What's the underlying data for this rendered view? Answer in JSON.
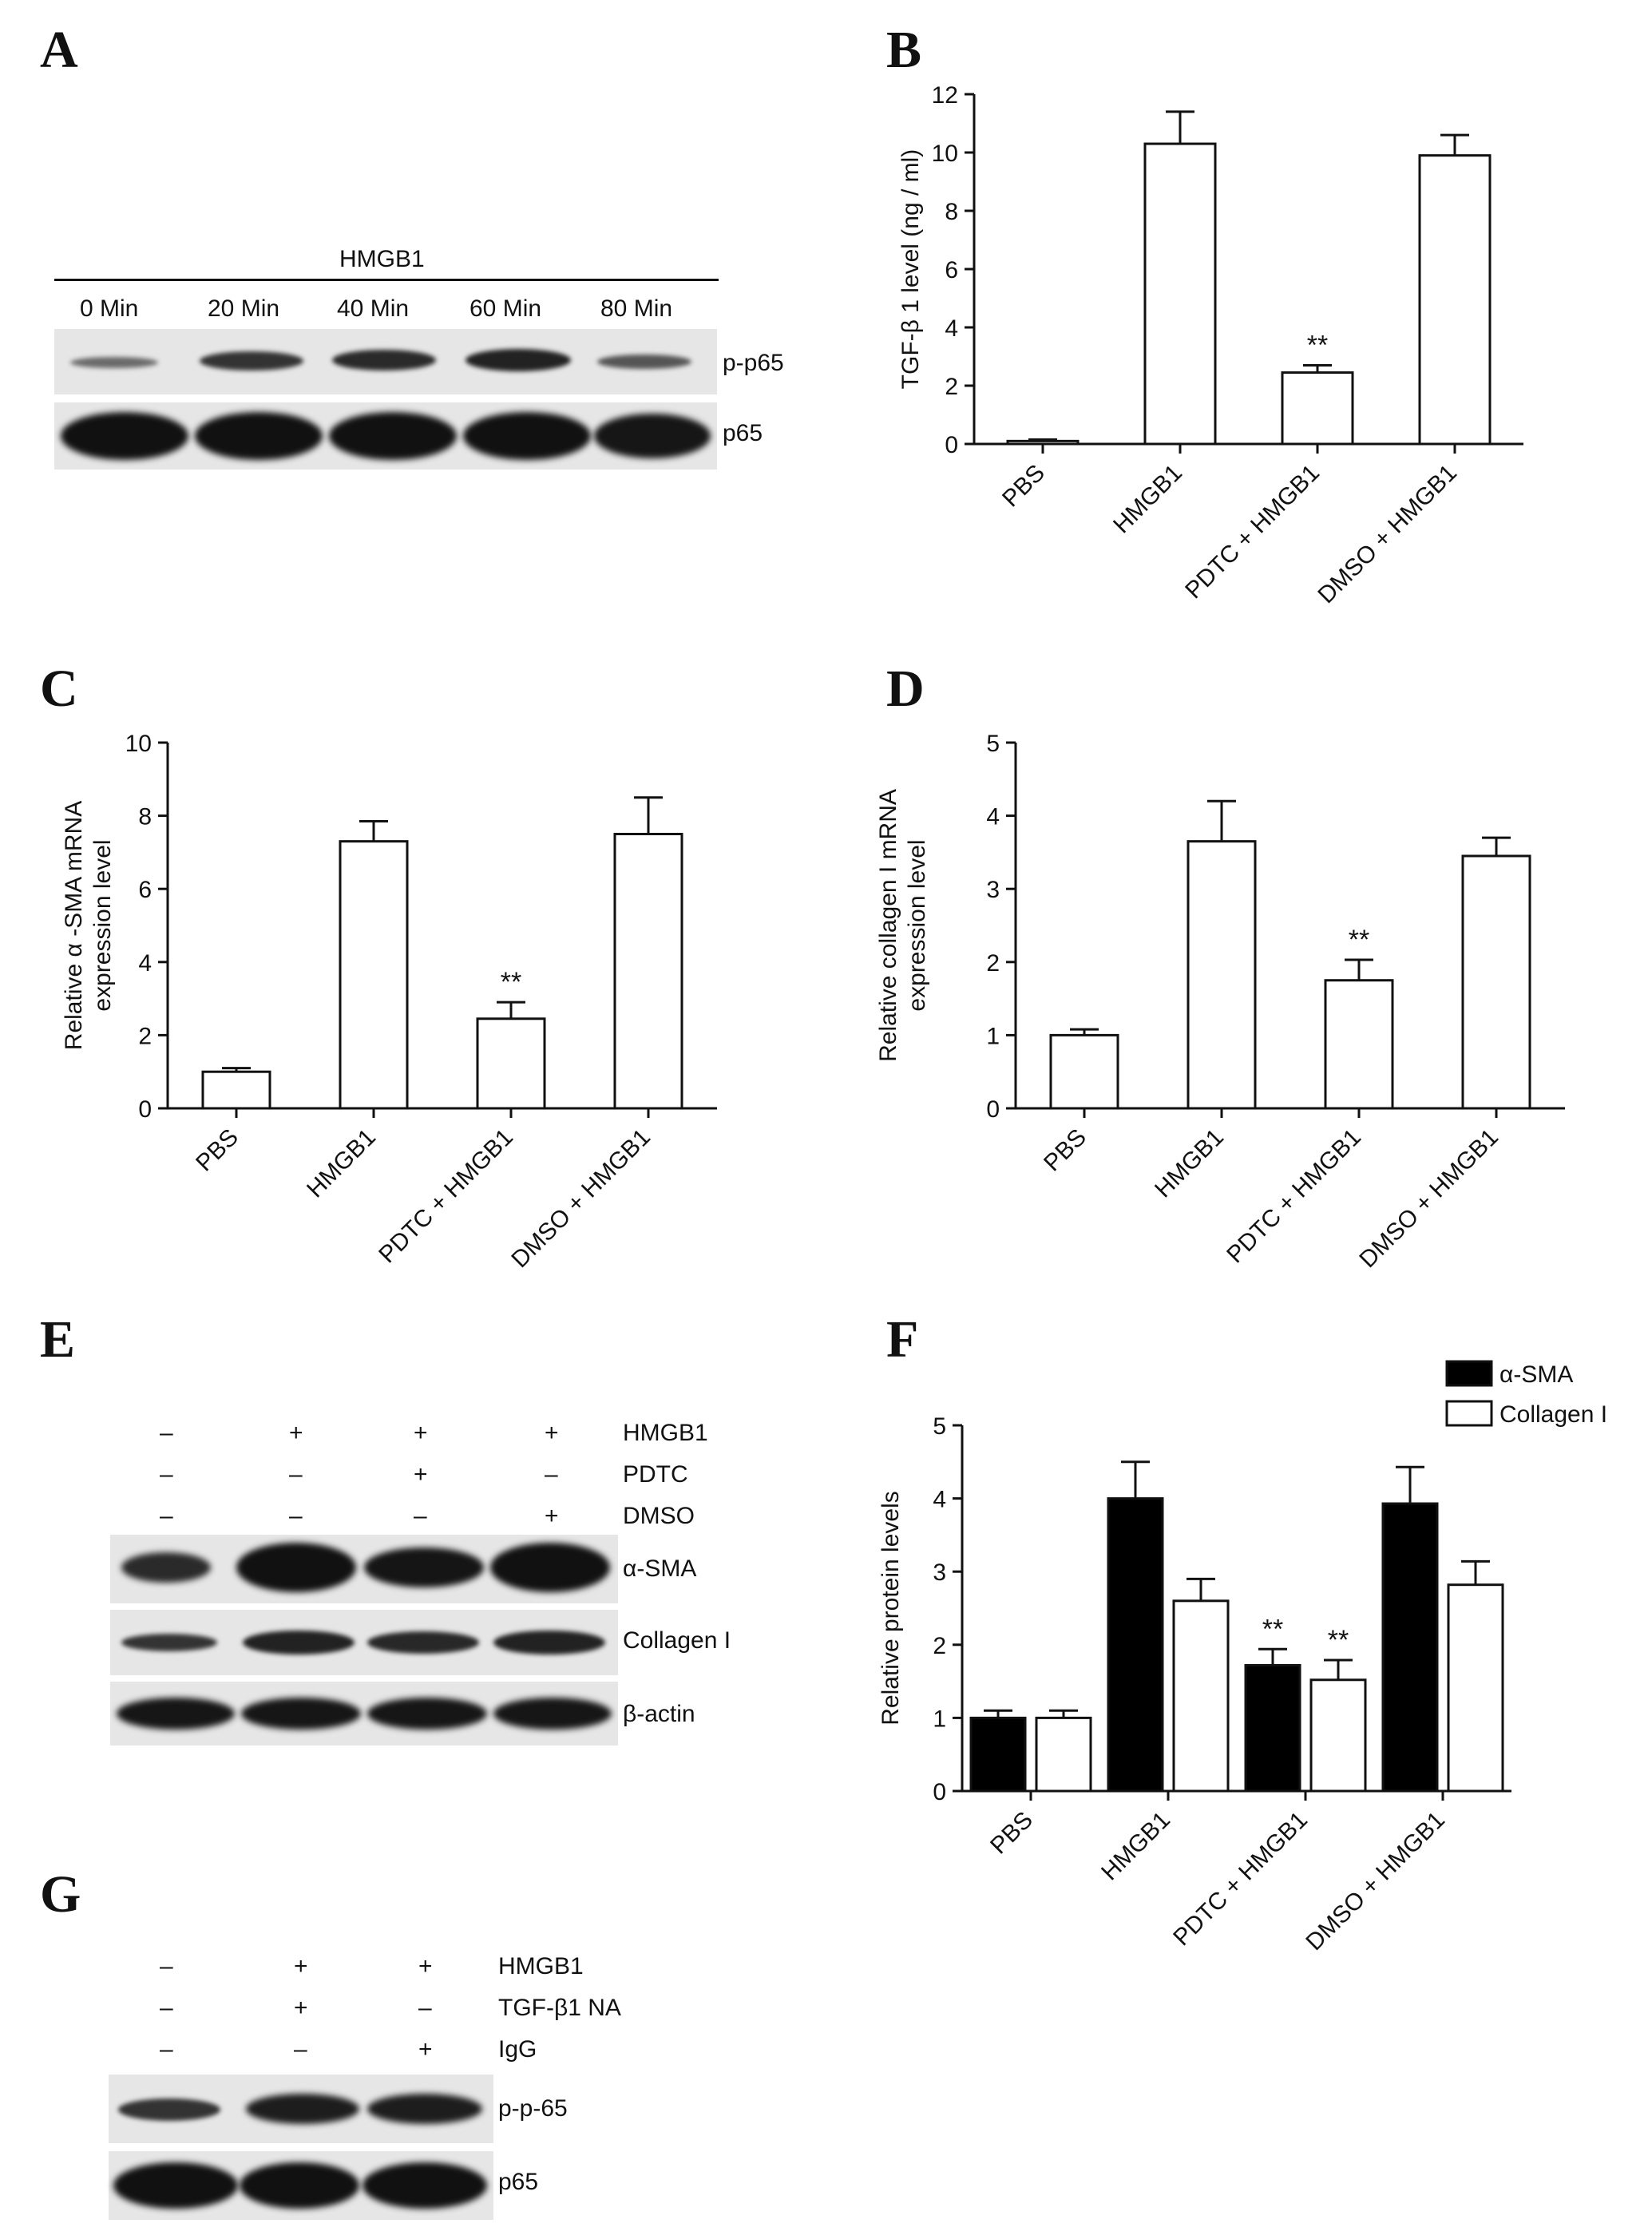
{
  "panels": {
    "a": {
      "label": "A",
      "treatment": "HMGB1",
      "times": [
        "0 Min",
        "20 Min",
        "40 Min",
        "60 Min",
        "80 Min"
      ],
      "rows": [
        "p-p65",
        "p65"
      ]
    },
    "e": {
      "label": "E",
      "conditions": [
        {
          "name": "HMGB1",
          "signs": [
            "–",
            "+",
            "+",
            "+"
          ]
        },
        {
          "name": "PDTC",
          "signs": [
            "–",
            "–",
            "+",
            "–"
          ]
        },
        {
          "name": "DMSO",
          "signs": [
            "–",
            "–",
            "–",
            "+"
          ]
        }
      ],
      "rows": [
        "α-SMA",
        "Collagen I",
        "β-actin"
      ]
    },
    "g": {
      "label": "G",
      "conditions": [
        {
          "name": "HMGB1",
          "signs": [
            "–",
            "+",
            "+"
          ]
        },
        {
          "name": "TGF-β1 NA",
          "signs": [
            "–",
            "+",
            "–"
          ]
        },
        {
          "name": "IgG",
          "signs": [
            "–",
            "–",
            "+"
          ]
        }
      ],
      "rows": [
        "p-p-65",
        "p65"
      ]
    }
  },
  "chart_data": [
    {
      "panel": "B",
      "type": "bar",
      "categories": [
        "PBS",
        "HMGB1",
        "PDTC + HMGB1",
        "DMSO + HMGB1"
      ],
      "series": [
        {
          "values": [
            0.1,
            10.3,
            2.45,
            9.9
          ],
          "errors": [
            0.05,
            1.1,
            0.25,
            0.7
          ],
          "color": "#ffffff"
        }
      ],
      "significance": [
        "",
        "",
        "**",
        ""
      ],
      "ylabel": "TGF-β 1 level (ng / ml)",
      "ylim": [
        0,
        12
      ],
      "yticks": [
        0,
        2,
        4,
        6,
        8,
        10,
        12
      ]
    },
    {
      "panel": "C",
      "type": "bar",
      "categories": [
        "PBS",
        "HMGB1",
        "PDTC + HMGB1",
        "DMSO + HMGB1"
      ],
      "series": [
        {
          "values": [
            1.0,
            7.3,
            2.45,
            7.5
          ],
          "errors": [
            0.1,
            0.55,
            0.45,
            1.0
          ],
          "color": "#ffffff"
        }
      ],
      "significance": [
        "",
        "",
        "**",
        ""
      ],
      "ylabel": [
        "Relative α -SMA mRNA",
        "expression level"
      ],
      "ylim": [
        0,
        10
      ],
      "yticks": [
        0,
        2,
        4,
        6,
        8,
        10
      ]
    },
    {
      "panel": "D",
      "type": "bar",
      "categories": [
        "PBS",
        "HMGB1",
        "PDTC + HMGB1",
        "DMSO + HMGB1"
      ],
      "series": [
        {
          "values": [
            1.0,
            3.65,
            1.75,
            3.45
          ],
          "errors": [
            0.08,
            0.55,
            0.28,
            0.25
          ],
          "color": "#ffffff"
        }
      ],
      "significance": [
        "",
        "",
        "**",
        ""
      ],
      "ylabel": [
        "Relative collagen I mRNA",
        "expression level"
      ],
      "ylim": [
        0,
        5
      ],
      "yticks": [
        0,
        1,
        2,
        3,
        4,
        5
      ]
    },
    {
      "panel": "F",
      "type": "bar",
      "categories": [
        "PBS",
        "HMGB1",
        "PDTC + HMGB1",
        "DMSO + HMGB1"
      ],
      "series": [
        {
          "name": "α-SMA",
          "values": [
            1.0,
            4.0,
            1.72,
            3.93
          ],
          "errors": [
            0.1,
            0.5,
            0.22,
            0.5
          ],
          "color": "#000000",
          "significance": [
            "",
            "",
            "**",
            ""
          ]
        },
        {
          "name": "Collagen I",
          "values": [
            1.0,
            2.6,
            1.52,
            2.82
          ],
          "errors": [
            0.1,
            0.3,
            0.27,
            0.32
          ],
          "color": "#ffffff",
          "significance": [
            "",
            "",
            "**",
            ""
          ]
        }
      ],
      "ylabel": "Relative protein levels",
      "ylim": [
        0,
        5
      ],
      "yticks": [
        0,
        1,
        2,
        3,
        4,
        5
      ],
      "legend": "top-right"
    }
  ]
}
